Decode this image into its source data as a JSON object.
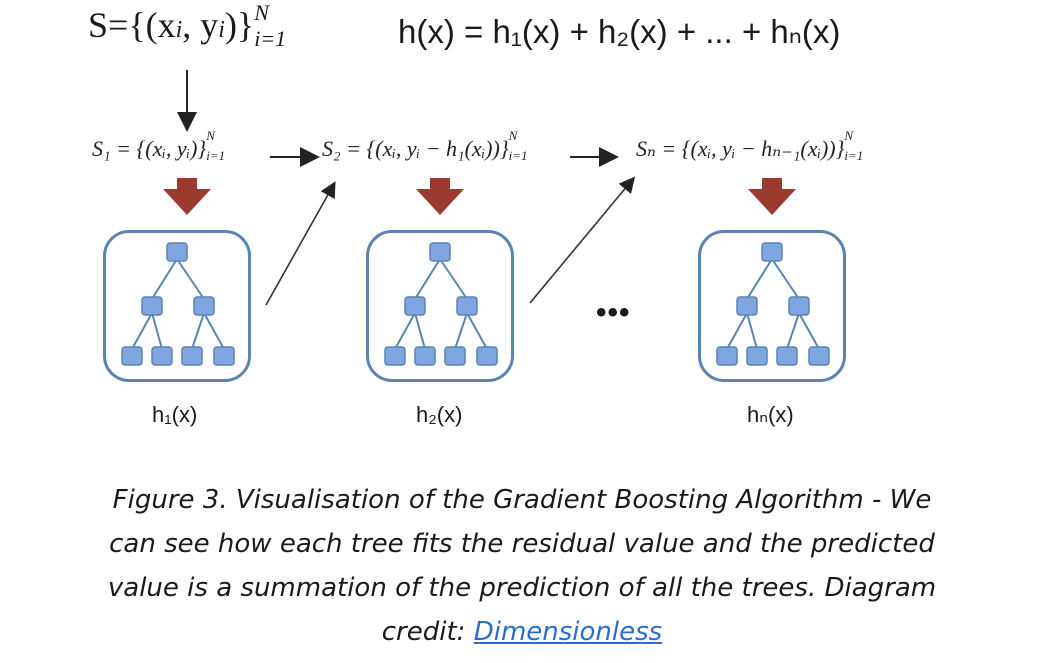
{
  "header": {
    "dataset_lhs": "S={(x",
    "dataset_mid": ", y",
    "dataset_rhs": ")}",
    "dataset_upper": "N",
    "dataset_lower": "i=1",
    "sum_formula_text": "h(x) = h₁(x) + h₂(x) + ... + hₙ(x)"
  },
  "stages": [
    {
      "formula": "S₁ = {(xᵢ, yᵢ)}",
      "upper": "N",
      "lower": "i=1",
      "label": "h₁(x)"
    },
    {
      "formula": "S₂ = {(xᵢ, yᵢ − h₁(xᵢ))}",
      "upper": "N",
      "lower": "i=1",
      "label": "h₂(x)"
    },
    {
      "formula": "Sₙ = {(xᵢ, yᵢ − hₙ₋₁(xᵢ))}",
      "upper": "N",
      "lower": "i=1",
      "label": "hₙ(x)"
    }
  ],
  "ellipsis": "•••",
  "caption": {
    "text": "Figure 3. Visualisation of the Gradient Boosting Algorithm - We can see how each tree fits the residual value and the predicted value is a summation of the prediction of all the trees. Diagram credit: ",
    "link_text": "Dimensionless"
  },
  "colors": {
    "arrow_red": "#9b3a2e",
    "tree_node": "#7fa6e0",
    "tree_border": "#5b84b1",
    "link": "#2b6cd1"
  }
}
